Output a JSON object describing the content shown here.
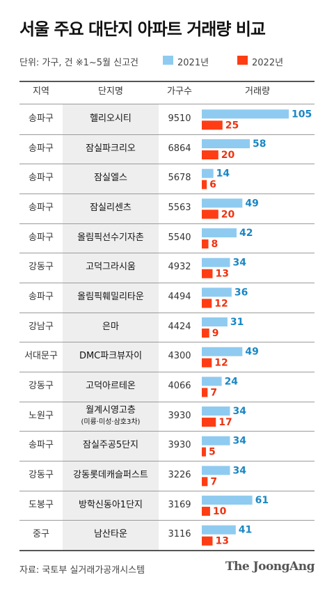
{
  "header": {
    "title": "서울 주요 대단지 아파트 거래량 비교",
    "unit_note": "단위: 가구, 건  ※1~5월 신고건"
  },
  "table_headers": {
    "region": "지역",
    "complex": "단지명",
    "households": "가구수",
    "volume": "거래량"
  },
  "footer": {
    "source": "자료: 국토부 실거래가공개시스템",
    "logo": "The JoongAng"
  },
  "colors": {
    "series_2021": "#8fcbf0",
    "series_2022": "#ff3d14",
    "label_2021": "#1a87c4",
    "label_2022": "#ee3311"
  },
  "chart_data": {
    "type": "bar",
    "title": "서울 주요 대단지 아파트 거래량 비교",
    "orientation": "horizontal",
    "categories": [
      "헬리오시티",
      "잠실파크리오",
      "잠실엘스",
      "잠실리센츠",
      "올림픽선수기자촌",
      "고덕그라시움",
      "올림픽훼밀리타운",
      "은마",
      "DMC파크뷰자이",
      "고덕아르테온",
      "월계시영고층",
      "잠실주공5단지",
      "강동롯데캐슬퍼스트",
      "방학신동아1단지",
      "남산타운"
    ],
    "category_subtitles": [
      "",
      "",
      "",
      "",
      "",
      "",
      "",
      "",
      "",
      "",
      "(미륭·미성·삼호3차)",
      "",
      "",
      "",
      ""
    ],
    "regions": [
      "송파구",
      "송파구",
      "송파구",
      "송파구",
      "송파구",
      "강동구",
      "송파구",
      "강남구",
      "서대문구",
      "강동구",
      "노원구",
      "송파구",
      "강동구",
      "도봉구",
      "중구"
    ],
    "households": [
      9510,
      6864,
      5678,
      5563,
      5540,
      4932,
      4494,
      4424,
      4300,
      4066,
      3930,
      3930,
      3226,
      3169,
      3116
    ],
    "series": [
      {
        "name": "2021년",
        "values": [
          105,
          58,
          14,
          49,
          42,
          34,
          36,
          31,
          49,
          24,
          34,
          34,
          34,
          61,
          41
        ]
      },
      {
        "name": "2022년",
        "values": [
          25,
          20,
          6,
          20,
          8,
          13,
          12,
          9,
          12,
          7,
          17,
          5,
          7,
          10,
          13
        ]
      }
    ]
  }
}
